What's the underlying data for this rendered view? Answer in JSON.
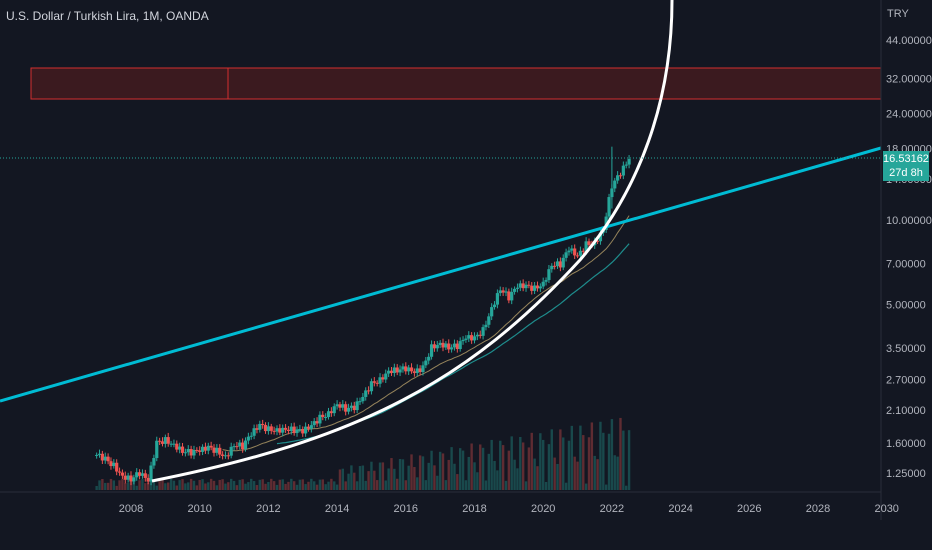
{
  "header": {
    "title": "U.S. Dollar / Turkish Lira, 1M, OANDA",
    "currency": "TRY"
  },
  "price_badge": {
    "price": "16.53162",
    "countdown": "27d 8h"
  },
  "colors": {
    "background": "#131722",
    "up": "#26a69a",
    "down": "#ef5350",
    "trendline": "#00bcd4",
    "curve": "#ffffff",
    "zone_fill": "#3b1a1f",
    "zone_border": "#d32f2f",
    "ma_slow": "#b8a06a",
    "ma_fast": "#1e8c8c"
  },
  "chart_data": {
    "type": "candlestick",
    "title": "U.S. Dollar / Turkish Lira, 1M, OANDA",
    "y_scale": "log",
    "y_ticks": [
      "44.00000",
      "32.00000",
      "24.00000",
      "18.00000",
      "14.00000",
      "10.00000",
      "7.00000",
      "5.00000",
      "3.50000",
      "2.70000",
      "2.10000",
      "1.60000",
      "1.25000"
    ],
    "x_ticks": [
      "2008",
      "2010",
      "2012",
      "2014",
      "2016",
      "2018",
      "2020",
      "2022",
      "2024",
      "2026",
      "2028",
      "2030"
    ],
    "last_price": 16.53162,
    "series": [
      {
        "name": "USDTRY monthly closes",
        "points": [
          [
            2007.0,
            1.45
          ],
          [
            2007.25,
            1.4
          ],
          [
            2007.5,
            1.33
          ],
          [
            2007.75,
            1.22
          ],
          [
            2008.0,
            1.19
          ],
          [
            2008.25,
            1.25
          ],
          [
            2008.5,
            1.17
          ],
          [
            2008.75,
            1.6
          ],
          [
            2009.0,
            1.64
          ],
          [
            2009.25,
            1.58
          ],
          [
            2009.5,
            1.5
          ],
          [
            2009.75,
            1.48
          ],
          [
            2010.0,
            1.5
          ],
          [
            2010.25,
            1.54
          ],
          [
            2010.5,
            1.5
          ],
          [
            2010.75,
            1.43
          ],
          [
            2011.0,
            1.58
          ],
          [
            2011.25,
            1.56
          ],
          [
            2011.5,
            1.72
          ],
          [
            2011.75,
            1.85
          ],
          [
            2012.0,
            1.79
          ],
          [
            2012.25,
            1.78
          ],
          [
            2012.5,
            1.8
          ],
          [
            2012.75,
            1.78
          ],
          [
            2013.0,
            1.76
          ],
          [
            2013.25,
            1.84
          ],
          [
            2013.5,
            1.97
          ],
          [
            2013.75,
            2.04
          ],
          [
            2014.0,
            2.21
          ],
          [
            2014.25,
            2.12
          ],
          [
            2014.5,
            2.14
          ],
          [
            2014.75,
            2.33
          ],
          [
            2015.0,
            2.6
          ],
          [
            2015.25,
            2.69
          ],
          [
            2015.5,
            2.9
          ],
          [
            2015.75,
            2.92
          ],
          [
            2016.0,
            2.95
          ],
          [
            2016.25,
            2.85
          ],
          [
            2016.5,
            2.97
          ],
          [
            2016.75,
            3.52
          ],
          [
            2017.0,
            3.63
          ],
          [
            2017.25,
            3.52
          ],
          [
            2017.5,
            3.55
          ],
          [
            2017.75,
            3.8
          ],
          [
            2018.0,
            3.78
          ],
          [
            2018.25,
            4.05
          ],
          [
            2018.5,
            4.85
          ],
          [
            2018.75,
            5.7
          ],
          [
            2019.0,
            5.3
          ],
          [
            2019.25,
            5.8
          ],
          [
            2019.5,
            5.8
          ],
          [
            2019.75,
            5.7
          ],
          [
            2020.0,
            5.95
          ],
          [
            2020.25,
            6.95
          ],
          [
            2020.5,
            6.95
          ],
          [
            2020.75,
            7.9
          ],
          [
            2021.0,
            7.4
          ],
          [
            2021.25,
            8.2
          ],
          [
            2021.5,
            8.3
          ],
          [
            2021.75,
            9.3
          ],
          [
            2022.0,
            13.3
          ],
          [
            2022.25,
            14.7
          ],
          [
            2022.5,
            16.53
          ]
        ]
      },
      {
        "name": "Ascending trendline",
        "points": [
          [
            2004.0,
            2.22
          ],
          [
            2030.0,
            17.8
          ]
        ]
      }
    ],
    "resistance_zone": {
      "low": 27.5,
      "high": 34.0,
      "from": 2004.0,
      "to": 2030.0
    },
    "grid": false,
    "legend": "none"
  }
}
